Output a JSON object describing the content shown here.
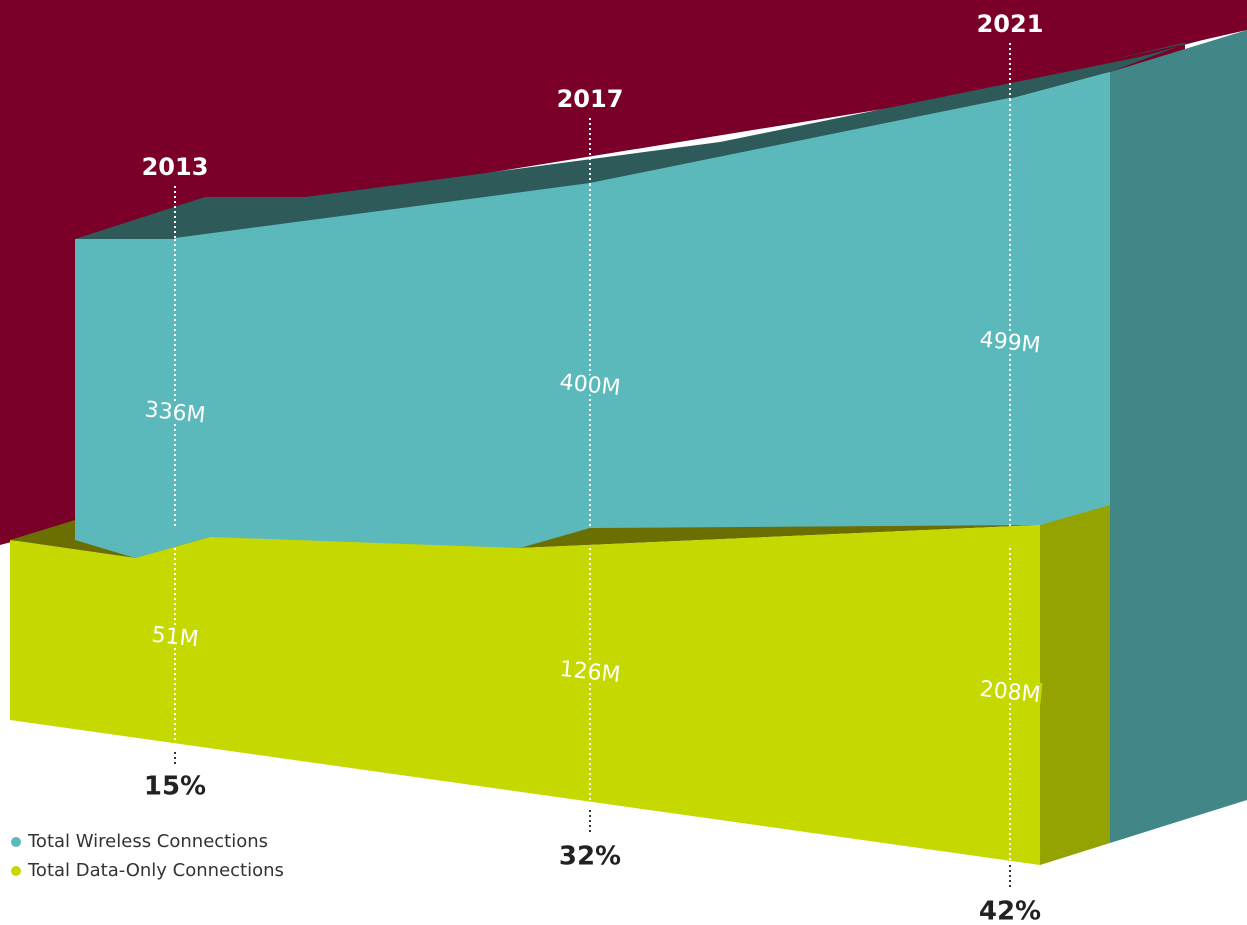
{
  "chart_data": {
    "type": "area3d",
    "categories": [
      "2013",
      "2017",
      "2021"
    ],
    "series": [
      {
        "name": "Total Wireless Connections",
        "color": "#5bb8bb",
        "values": [
          336,
          400,
          499
        ],
        "value_labels": [
          "336M",
          "400M",
          "499M"
        ]
      },
      {
        "name": "Total Data-Only Connections",
        "color": "#c5d900",
        "values": [
          51,
          126,
          208
        ],
        "value_labels": [
          "51M",
          "126M",
          "208M"
        ]
      }
    ],
    "shares": [
      15,
      32,
      42
    ],
    "share_labels": [
      "15%",
      "32%",
      "42%"
    ]
  }
}
